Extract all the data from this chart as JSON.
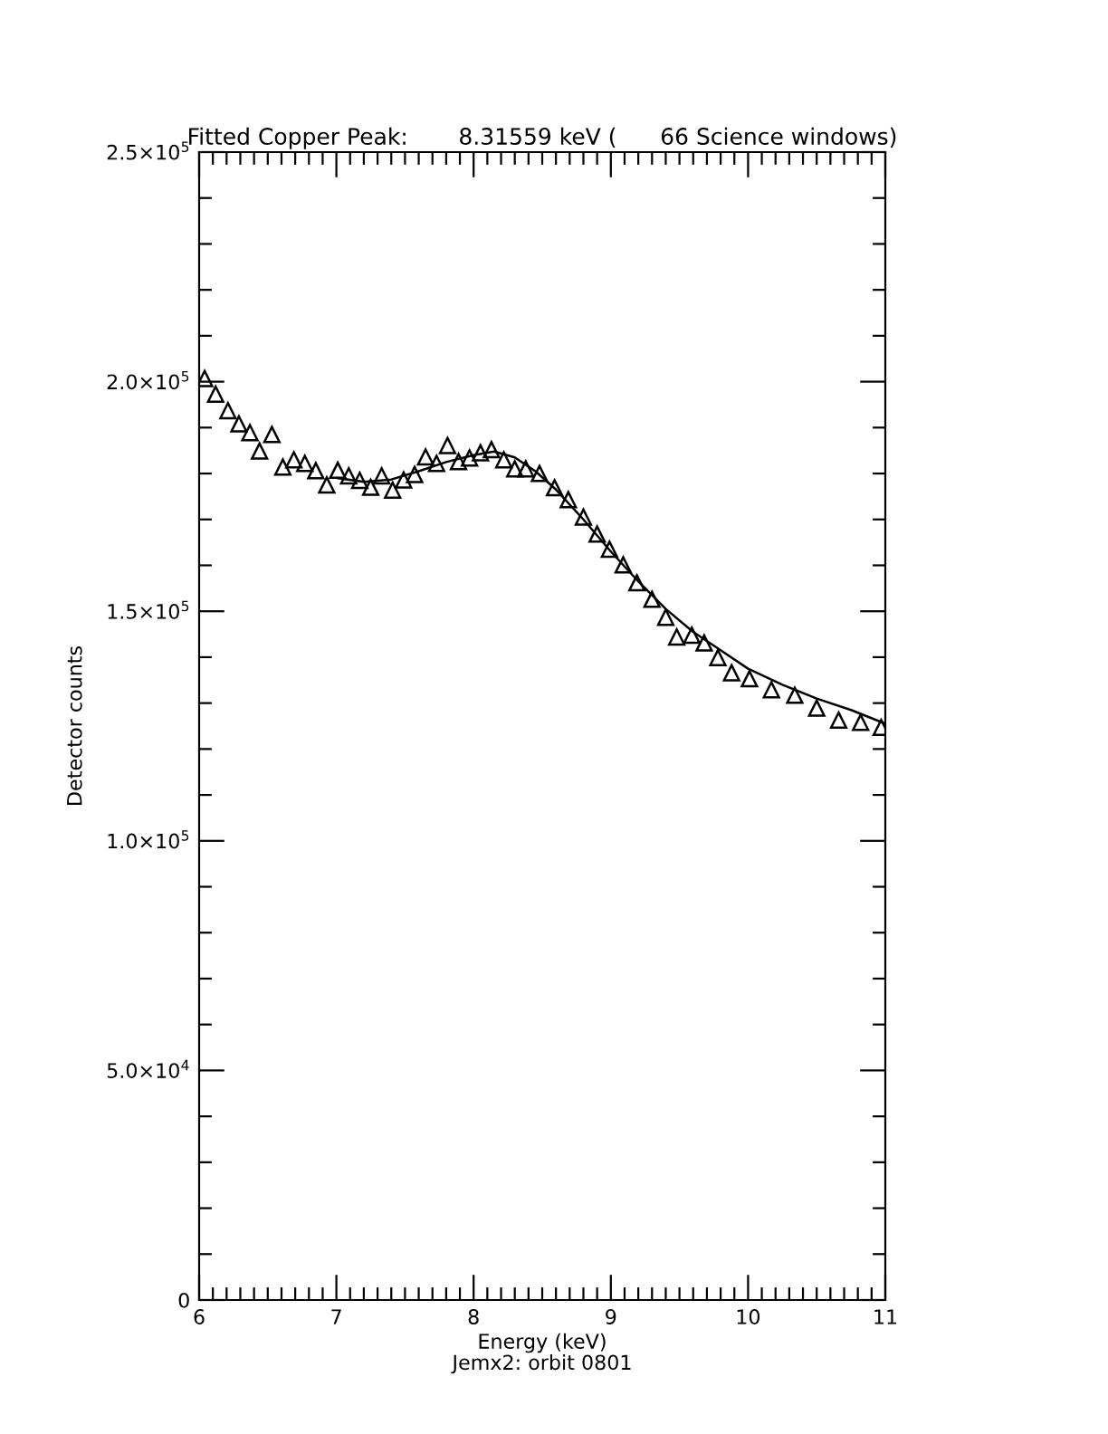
{
  "chart_data": {
    "type": "scatter",
    "title": "Fitted Copper Peak:       8.31559 keV (      66 Science windows)",
    "xlabel": "Energy (keV)",
    "ylabel": "Detector counts",
    "annotations": [
      "Jemx2: orbit 0801"
    ],
    "marker": "triangle",
    "grid": false,
    "legend": false,
    "xlim": [
      6,
      11
    ],
    "xticks": [
      6,
      7,
      8,
      9,
      10,
      11
    ],
    "ylim": [
      0,
      250000
    ],
    "yticks": [
      {
        "value": 0,
        "label": "0"
      },
      {
        "value": 50000,
        "label": "5.0×10$^{4}$"
      },
      {
        "value": 100000,
        "label": "1.0×10$^{5}$"
      },
      {
        "value": 150000,
        "label": "1.5×10$^{5}$"
      },
      {
        "value": 200000,
        "label": "2.0×10$^{5}$"
      },
      {
        "value": 250000,
        "label": "2.5×10$^{5}$"
      }
    ],
    "series": [
      {
        "color": "#000000",
        "x": [
          6.04,
          6.12,
          6.21,
          6.29,
          6.37,
          6.44,
          6.53,
          6.61,
          6.69,
          6.77,
          6.85,
          6.93,
          7.01,
          7.09,
          7.17,
          7.25,
          7.33,
          7.41,
          7.49,
          7.57,
          7.65,
          7.73,
          7.81,
          7.89,
          7.97,
          8.05,
          8.13,
          8.22,
          8.3,
          8.38,
          8.48,
          8.59,
          8.69,
          8.8,
          8.9,
          8.99,
          9.09,
          9.19,
          9.3,
          9.4,
          9.48,
          9.59,
          9.68,
          9.78,
          9.88,
          10.01,
          10.17,
          10.34,
          10.5,
          10.66,
          10.82,
          10.97
        ],
        "values": [
          200700,
          197300,
          193700,
          190800,
          188900,
          184900,
          188500,
          181400,
          183000,
          182200,
          180600,
          177500,
          180700,
          179500,
          178500,
          177000,
          179500,
          176400,
          178600,
          179800,
          183600,
          182200,
          186100,
          182600,
          183400,
          184500,
          185200,
          183000,
          181000,
          181000,
          180000,
          176900,
          174300,
          170500,
          166800,
          163500,
          160100,
          156200,
          152600,
          148700,
          144400,
          144800,
          143100,
          139900,
          136600,
          135300,
          132900,
          131700,
          128900,
          126300,
          125800,
          124700
        ]
      },
      {
        "type": "line",
        "color": "#000000",
        "line_style": "solid",
        "marker": "none",
        "x": [
          7.01,
          7.2,
          7.4,
          7.6,
          7.8,
          8.0,
          8.15,
          8.3,
          8.45,
          8.6,
          8.8,
          9.0,
          9.2,
          9.4,
          9.6,
          9.8,
          10.0,
          10.25,
          10.5,
          10.75,
          11.0
        ],
        "values": [
          179000,
          178200,
          178700,
          180500,
          182500,
          184000,
          184800,
          183500,
          180500,
          176500,
          170000,
          163000,
          156500,
          150500,
          145500,
          141500,
          137500,
          134000,
          131000,
          128500,
          125500
        ]
      }
    ]
  }
}
